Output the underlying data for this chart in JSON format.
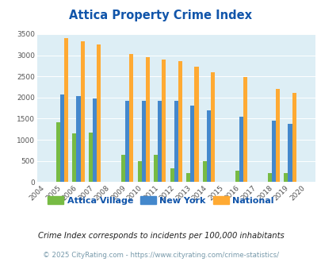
{
  "title": "Attica Property Crime Index",
  "years": [
    2004,
    2005,
    2006,
    2007,
    2008,
    2009,
    2010,
    2011,
    2012,
    2013,
    2014,
    2015,
    2016,
    2017,
    2018,
    2019,
    2020
  ],
  "attica_village": [
    0,
    1420,
    1160,
    1175,
    0,
    650,
    490,
    640,
    330,
    220,
    490,
    0,
    260,
    0,
    210,
    210,
    0
  ],
  "new_york": [
    0,
    2080,
    2040,
    1980,
    0,
    1930,
    1930,
    1920,
    1920,
    1810,
    1700,
    0,
    1555,
    0,
    1450,
    1370,
    0
  ],
  "national": [
    0,
    3400,
    3320,
    3250,
    0,
    3035,
    2950,
    2900,
    2860,
    2730,
    2600,
    0,
    2480,
    0,
    2200,
    2110,
    0
  ],
  "attica_color": "#77bb44",
  "newyork_color": "#4488cc",
  "national_color": "#ffaa33",
  "bg_color": "#ddeef5",
  "title_color": "#1155aa",
  "ylabel_max": 3500,
  "yticks": [
    0,
    500,
    1000,
    1500,
    2000,
    2500,
    3000,
    3500
  ],
  "subtitle": "Crime Index corresponds to incidents per 100,000 inhabitants",
  "footer": "© 2025 CityRating.com - https://www.cityrating.com/crime-statistics/",
  "subtitle_color": "#222222",
  "footer_color": "#7799aa"
}
